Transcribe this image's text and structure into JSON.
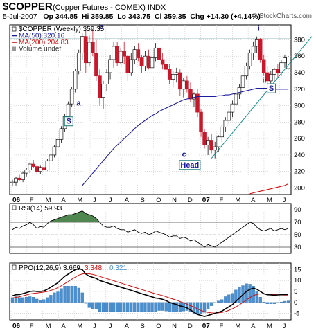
{
  "header": {
    "symbol": "$COPPER",
    "name": "(Copper Futures - COMEX) INDX",
    "date": "5-Jul-2007",
    "open": "Op 344.85",
    "high": "Hi 359.85",
    "low": "Lo 343.75",
    "close": "Cl 359.35",
    "change": "Chg +14.30 (+4.14%)",
    "credit": "© StockCharts.com"
  },
  "colors": {
    "up": "#1a7a1a",
    "down": "#c8182b",
    "ma50": "#1c1c9c",
    "ma200": "#d01010",
    "ppo": "#000000",
    "signal": "#d01010",
    "histogram": "#4a8fd0",
    "rsi_fill": "#3d7a3d",
    "trendline": "#1a9090",
    "resistance": "#1a7a7a"
  },
  "chart_data": [
    {
      "type": "line",
      "title": "$COPPER (Weekly) 359.35",
      "legend": [
        "$COPPER (Weekly) 359.35",
        "MA(50) 320.16",
        "MA(200) 204.83",
        "Volume undef"
      ],
      "y_ticks": [
        200,
        220,
        240,
        260,
        280,
        300,
        320,
        340,
        360,
        380
      ],
      "ylim": [
        192,
        398
      ],
      "x_ticks": [
        "06",
        "F",
        "M",
        "A",
        "M",
        "J",
        "J",
        "A",
        "S",
        "O",
        "N",
        "D",
        "07",
        "F",
        "M",
        "A",
        "M",
        "J"
      ],
      "annotations": [
        {
          "label": "a",
          "x": 0.245,
          "y": 300
        },
        {
          "label": "b",
          "x": 0.325,
          "y": 393
        },
        {
          "label": "S",
          "x": 0.21,
          "y": 278
        },
        {
          "label": "c",
          "x": 0.62,
          "y": 238
        },
        {
          "label": "Head",
          "x": 0.64,
          "y": 225
        },
        {
          "label": "i",
          "x": 0.885,
          "y": 391
        },
        {
          "label": "ii",
          "x": 0.905,
          "y": 328
        },
        {
          "label": "S",
          "x": 0.93,
          "y": 318
        }
      ],
      "resistance_level": 381,
      "series": [
        {
          "name": "$COPPER",
          "values": [
            [
              206,
              210,
              202,
              207
            ],
            [
              207,
              214,
              203,
              212
            ],
            [
              212,
              216,
              208,
              210
            ],
            [
              210,
              220,
              207,
              218
            ],
            [
              218,
              224,
              214,
              222
            ],
            [
              222,
              231,
              218,
              229
            ],
            [
              229,
              234,
              224,
              226
            ],
            [
              226,
              228,
              216,
              220
            ],
            [
              220,
              227,
              217,
              225
            ],
            [
              225,
              230,
              219,
              222
            ],
            [
              222,
              235,
              221,
              233
            ],
            [
              233,
              242,
              230,
              240
            ],
            [
              240,
              252,
              237,
              250
            ],
            [
              250,
              262,
              246,
              259
            ],
            [
              259,
              275,
              255,
              272
            ],
            [
              272,
              290,
              268,
              287
            ],
            [
              287,
              305,
              282,
              302
            ],
            [
              302,
              323,
              298,
              320
            ],
            [
              320,
              345,
              316,
              342
            ],
            [
              342,
              368,
              338,
              364
            ],
            [
              364,
              388,
              356,
              384
            ],
            [
              384,
              392,
              340,
              352
            ],
            [
              352,
              385,
              348,
              377
            ],
            [
              377,
              392,
              360,
              364
            ],
            [
              364,
              380,
              330,
              336
            ],
            [
              336,
              344,
              300,
              310
            ],
            [
              310,
              330,
              296,
              326
            ],
            [
              326,
              345,
              318,
              340
            ],
            [
              340,
              362,
              332,
              356
            ],
            [
              356,
              378,
              346,
              372
            ],
            [
              372,
              377,
              348,
              352
            ],
            [
              352,
              370,
              350,
              366
            ],
            [
              366,
              378,
              350,
              360
            ],
            [
              360,
              362,
              330,
              340
            ],
            [
              340,
              364,
              336,
              356
            ],
            [
              356,
              372,
              350,
              368
            ],
            [
              368,
              376,
              354,
              358
            ],
            [
              358,
              362,
              340,
              348
            ],
            [
              348,
              366,
              342,
              360
            ],
            [
              360,
              368,
              344,
              346
            ],
            [
              346,
              362,
              340,
              358
            ],
            [
              358,
              376,
              354,
              370
            ],
            [
              370,
              375,
              352,
              356
            ],
            [
              356,
              364,
              344,
              350
            ],
            [
              350,
              362,
              340,
              344
            ],
            [
              344,
              350,
              326,
              332
            ],
            [
              332,
              342,
              322,
              338
            ],
            [
              338,
              346,
              328,
              340
            ],
            [
              340,
              344,
              312,
              320
            ],
            [
              320,
              334,
              310,
              330
            ],
            [
              330,
              336,
              316,
              320
            ],
            [
              320,
              328,
              304,
              308
            ],
            [
              308,
              316,
              298,
              314
            ],
            [
              314,
              320,
              286,
              292
            ],
            [
              292,
              296,
              262,
              268
            ],
            [
              268,
              272,
              248,
              252
            ],
            [
              252,
              262,
              240,
              258
            ],
            [
              258,
              266,
              242,
              246
            ],
            [
              246,
              256,
              236,
              250
            ],
            [
              250,
              264,
              244,
              262
            ],
            [
              262,
              276,
              256,
              274
            ],
            [
              274,
              286,
              268,
              282
            ],
            [
              282,
              296,
              276,
              292
            ],
            [
              292,
              306,
              286,
              302
            ],
            [
              302,
              316,
              296,
              314
            ],
            [
              314,
              326,
              308,
              322
            ],
            [
              322,
              340,
              316,
              336
            ],
            [
              336,
              352,
              332,
              348
            ],
            [
              348,
              368,
              344,
              364
            ],
            [
              364,
              378,
              356,
              372
            ],
            [
              372,
              384,
              364,
              380
            ],
            [
              380,
              382,
              352,
              356
            ],
            [
              356,
              362,
              336,
              340
            ],
            [
              340,
              348,
              326,
              330
            ],
            [
              330,
              342,
              322,
              338
            ],
            [
              338,
              346,
              330,
              344
            ],
            [
              344,
              350,
              334,
              340
            ],
            [
              340,
              356,
              336,
              352
            ],
            [
              352,
              362,
              346,
              358
            ],
            [
              345,
              360,
              344,
              359
            ]
          ]
        },
        {
          "name": "MA(50)",
          "values": [
            null,
            null,
            null,
            null,
            null,
            null,
            null,
            null,
            null,
            null,
            null,
            null,
            null,
            null,
            null,
            null,
            null,
            null,
            null,
            null,
            203,
            208,
            213,
            218,
            223,
            228,
            233,
            238,
            243,
            248,
            252,
            256,
            260,
            264,
            268,
            272,
            276,
            279,
            282,
            285,
            288,
            290,
            293,
            295,
            297,
            299,
            301,
            303,
            305,
            307,
            308,
            309,
            310,
            311,
            311,
            311,
            311,
            311,
            311,
            312,
            312,
            313,
            313,
            314,
            315,
            316,
            317,
            318,
            319,
            320,
            321,
            321,
            321,
            321,
            321,
            320,
            320,
            320,
            320,
            320
          ]
        },
        {
          "name": "MA(200)",
          "values": [
            null,
            null,
            null,
            null,
            null,
            null,
            null,
            null,
            null,
            null,
            null,
            null,
            null,
            null,
            null,
            null,
            null,
            null,
            null,
            null,
            null,
            null,
            null,
            null,
            null,
            null,
            null,
            null,
            null,
            null,
            null,
            null,
            null,
            null,
            null,
            null,
            null,
            null,
            null,
            null,
            null,
            null,
            null,
            null,
            null,
            null,
            null,
            null,
            null,
            null,
            null,
            null,
            null,
            null,
            null,
            null,
            null,
            null,
            null,
            null,
            null,
            null,
            null,
            null,
            null,
            null,
            null,
            null,
            193,
            194,
            195,
            196,
            197,
            198,
            199,
            200,
            201,
            202,
            203,
            205
          ]
        }
      ]
    },
    {
      "type": "area",
      "title": "RSI(14) 59.93",
      "y_ticks": [
        30,
        50,
        70,
        90
      ],
      "ylim": [
        20,
        100
      ],
      "overbought": 70,
      "oversold": 30,
      "values": [
        58,
        62,
        60,
        64,
        66,
        70,
        66,
        60,
        63,
        62,
        68,
        72,
        74,
        76,
        78,
        80,
        82,
        82,
        84,
        86,
        88,
        84,
        82,
        80,
        76,
        70,
        64,
        62,
        62,
        64,
        60,
        58,
        58,
        54,
        56,
        58,
        54,
        52,
        54,
        50,
        52,
        56,
        54,
        52,
        50,
        46,
        48,
        48,
        44,
        46,
        44,
        40,
        42,
        38,
        34,
        30,
        34,
        32,
        30,
        34,
        38,
        42,
        46,
        50,
        54,
        58,
        62,
        66,
        70,
        68,
        62,
        58,
        56,
        58,
        60,
        56,
        58,
        60,
        58,
        60
      ]
    },
    {
      "type": "line",
      "title": "PPO(12,26,9) 3.669, 3.348, 0.321",
      "legend": [
        "PPO(12,26,9) 3.669",
        "3.348",
        "0.321"
      ],
      "y_ticks": [
        -5,
        0,
        5,
        10,
        15
      ],
      "ylim": [
        -8,
        18
      ],
      "series": [
        {
          "name": "PPO",
          "values": [
            3,
            3.5,
            3.6,
            4,
            4.5,
            5,
            5.2,
            5,
            5,
            5.3,
            6,
            7,
            8,
            9,
            10.5,
            12,
            13,
            14,
            15,
            15.5,
            15,
            13,
            12,
            11.5,
            11,
            10,
            9.5,
            9,
            8.5,
            8,
            7.5,
            7,
            6.5,
            6,
            5.5,
            5,
            4.5,
            4,
            3.5,
            3,
            2.5,
            2,
            1.8,
            1.4,
            0.8,
            0,
            -0.5,
            -1,
            -1.6,
            -2,
            -2.5,
            -3.5,
            -4.5,
            -5.5,
            -6,
            -6.4,
            -6,
            -5.5,
            -5,
            -4.5,
            -4,
            -3,
            -2,
            -1,
            0.5,
            2,
            3.5,
            5,
            6,
            6.5,
            6,
            5,
            4,
            3.5,
            3.4,
            3.3,
            3.4,
            3.5,
            3.6,
            3.669
          ]
        },
        {
          "name": "Signal",
          "values": [
            2,
            2.3,
            2.6,
            3,
            3.4,
            3.8,
            4.1,
            4.3,
            4.5,
            4.7,
            5,
            5.5,
            6,
            6.8,
            7.6,
            8.6,
            9.6,
            10.6,
            11.6,
            12.5,
            13,
            13.2,
            13.1,
            12.8,
            12.4,
            11.9,
            11.4,
            10.9,
            10.4,
            9.9,
            9.4,
            8.9,
            8.4,
            7.9,
            7.4,
            6.9,
            6.4,
            5.9,
            5.4,
            4.9,
            4.4,
            3.9,
            3.5,
            3.1,
            2.6,
            2,
            1.5,
            1,
            0.4,
            -0.2,
            -0.8,
            -1.5,
            -2.2,
            -3,
            -3.7,
            -4.3,
            -4.6,
            -4.8,
            -4.9,
            -4.8,
            -4.6,
            -4.2,
            -3.6,
            -2.9,
            -2.1,
            -1.1,
            0,
            1.1,
            2.2,
            3.1,
            3.7,
            3.9,
            3.9,
            3.8,
            3.7,
            3.6,
            3.5,
            3.4,
            3.35,
            3.348
          ]
        }
      ]
    }
  ]
}
